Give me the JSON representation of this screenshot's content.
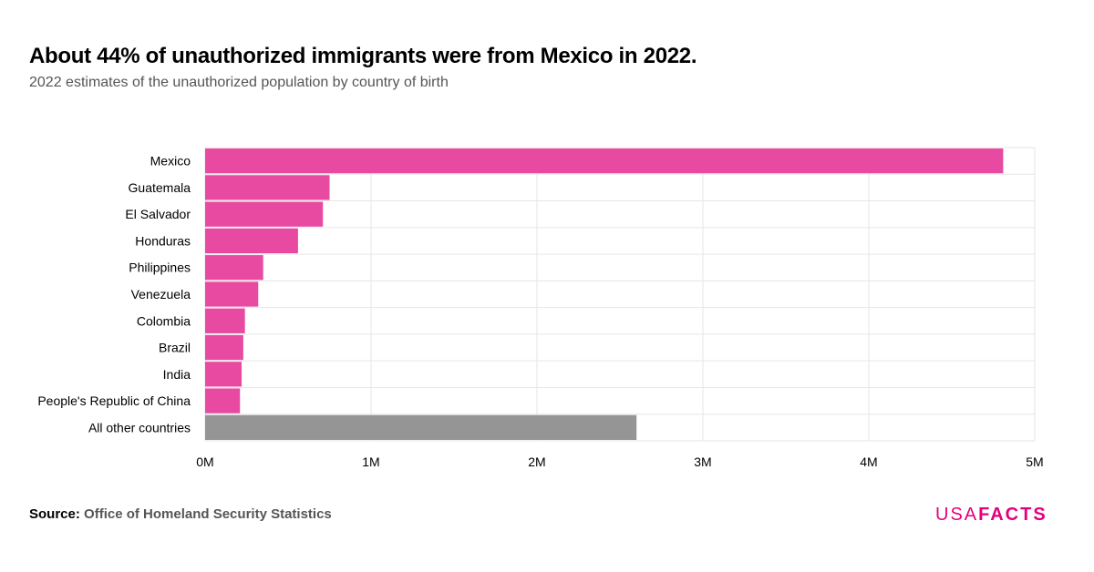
{
  "title": "About 44% of unauthorized immigrants were from Mexico in 2022.",
  "subtitle": "2022 estimates of the unauthorized population by country of birth",
  "source_label": "Source:",
  "source": "Office of Homeland Security Statistics",
  "logo": {
    "light": "USA",
    "bold": "FACTS"
  },
  "chart_data": {
    "type": "bar",
    "orientation": "horizontal",
    "categories": [
      "Mexico",
      "Guatemala",
      "El Salvador",
      "Honduras",
      "Philippines",
      "Venezuela",
      "Colombia",
      "Brazil",
      "India",
      "People's Republic of China",
      "All other countries"
    ],
    "values": [
      4810000,
      750000,
      710000,
      560000,
      350000,
      320000,
      240000,
      230000,
      220000,
      210000,
      2600000
    ],
    "colors": [
      "#e84aa2",
      "#e84aa2",
      "#e84aa2",
      "#e84aa2",
      "#e84aa2",
      "#e84aa2",
      "#e84aa2",
      "#e84aa2",
      "#e84aa2",
      "#e84aa2",
      "#959595"
    ],
    "xlim": [
      0,
      5000000
    ],
    "xticks": [
      0,
      1000000,
      2000000,
      3000000,
      4000000,
      5000000
    ],
    "xtick_labels": [
      "0M",
      "1M",
      "2M",
      "3M",
      "4M",
      "5M"
    ],
    "grid": true
  }
}
